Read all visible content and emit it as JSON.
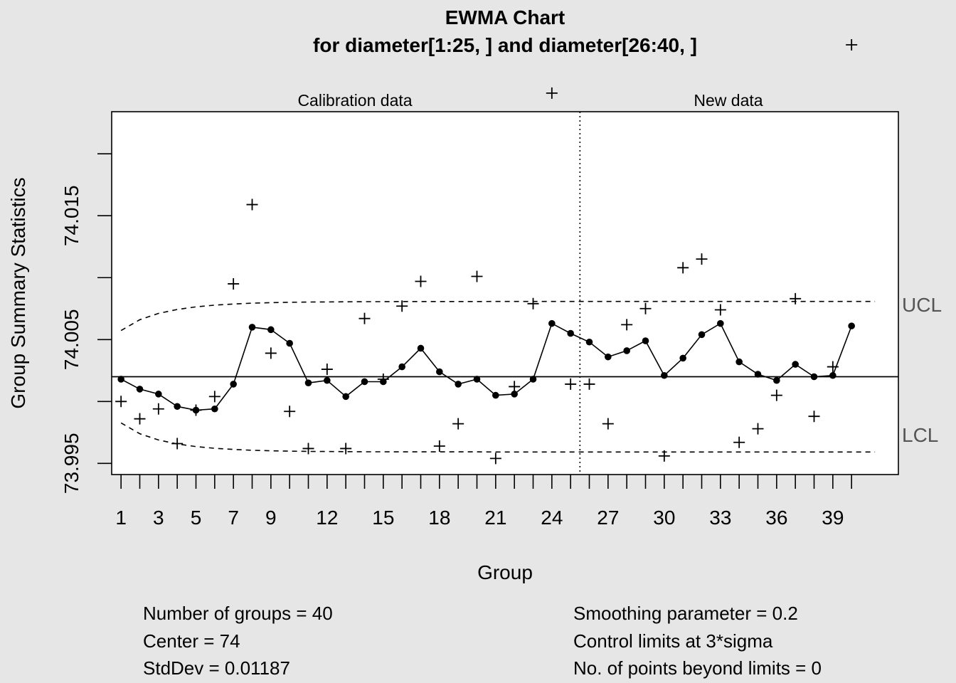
{
  "chart_data": {
    "type": "line",
    "title": "EWMA Chart",
    "subtitle": "for diameter[1:25, ] and diameter[26:40, ]",
    "xlabel": "Group",
    "ylabel": "Group Summary Statistics",
    "sections": [
      "Calibration data",
      "New data"
    ],
    "calibration_end": 25,
    "xlim": [
      0.5,
      42.5
    ],
    "ylim": [
      73.9941,
      74.0234
    ],
    "x_ticks": [
      1,
      3,
      5,
      7,
      9,
      12,
      15,
      18,
      21,
      24,
      27,
      30,
      33,
      36,
      39
    ],
    "x_tick_marks": [
      1,
      2,
      3,
      4,
      5,
      6,
      7,
      8,
      9,
      10,
      11,
      12,
      13,
      14,
      15,
      16,
      17,
      18,
      19,
      20,
      21,
      22,
      23,
      24,
      25,
      26,
      27,
      28,
      29,
      30,
      31,
      32,
      33,
      34,
      35,
      36,
      37,
      38,
      39,
      40
    ],
    "y_ticks": [
      73.995,
      74.0,
      74.005,
      74.01,
      74.015,
      74.02
    ],
    "y_tick_labels": [
      "73.995",
      "",
      "74.005",
      "",
      "74.015",
      ""
    ],
    "center": 74.002,
    "center_line_label": "",
    "ucl_label": "UCL",
    "lcl_label": "LCL",
    "x": [
      1,
      2,
      3,
      4,
      5,
      6,
      7,
      8,
      9,
      10,
      11,
      12,
      13,
      14,
      15,
      16,
      17,
      18,
      19,
      20,
      21,
      22,
      23,
      24,
      25,
      26,
      27,
      28,
      29,
      30,
      31,
      32,
      33,
      34,
      35,
      36,
      37,
      38,
      39,
      40
    ],
    "series": [
      {
        "name": "",
        "kind": "group statistics",
        "values": [
          74.0,
          73.9986,
          73.9994,
          73.9966,
          73.9993,
          74.0004,
          74.0095,
          74.0159,
          74.0039,
          73.9992,
          73.9962,
          74.0026,
          73.9962,
          74.0067,
          74.0018,
          74.0077,
          74.0097,
          73.9964,
          73.9982,
          74.0101,
          73.9954,
          74.0012,
          74.0079,
          74.0249,
          74.0014,
          74.0014,
          73.9982,
          74.0062,
          74.0075,
          73.9956,
          74.0108,
          74.0115,
          74.0074,
          73.9967,
          73.9978,
          74.0005,
          74.0083,
          73.9988,
          74.0028,
          74.0288
        ]
      },
      {
        "name": "",
        "kind": "EWMA",
        "values": [
          74.0018,
          74.001,
          74.0006,
          73.9996,
          73.9993,
          73.9994,
          74.0014,
          74.006,
          74.0058,
          74.0047,
          74.0015,
          74.0017,
          74.0004,
          74.0016,
          74.0016,
          74.0028,
          74.0043,
          74.0024,
          74.0014,
          74.0018,
          74.0005,
          74.0006,
          74.0018,
          74.0063,
          74.0055,
          74.0048,
          74.0036,
          74.0041,
          74.0049,
          74.0021,
          74.0035,
          74.0054,
          74.0063,
          74.0032,
          74.0022,
          74.0017,
          74.003,
          74.002,
          74.0021,
          74.0061
        ]
      }
    ],
    "ucl": [
      74.00573,
      74.0066,
      74.00711,
      74.00743,
      74.00764,
      74.00778,
      74.00787,
      74.00794,
      74.00798,
      74.00801,
      74.00803,
      74.00804,
      74.00805,
      74.00806,
      74.00806,
      74.00807,
      74.00807,
      74.00807,
      74.00807,
      74.00807,
      74.00808,
      74.00808,
      74.00808,
      74.00808,
      74.00808,
      74.00808,
      74.00808,
      74.00808,
      74.00808,
      74.00808,
      74.00808,
      74.00808,
      74.00808,
      74.00808,
      74.00808,
      74.00808,
      74.00808,
      74.00808,
      74.00808,
      74.00808
    ],
    "lcl": [
      73.99827,
      73.9974,
      73.99689,
      73.99657,
      73.99636,
      73.99622,
      73.99613,
      73.99606,
      73.99602,
      73.99599,
      73.99597,
      73.99596,
      73.99595,
      73.99594,
      73.99594,
      73.99593,
      73.99593,
      73.99593,
      73.99593,
      73.99593,
      73.99592,
      73.99592,
      73.99592,
      73.99592,
      73.99592,
      73.99592,
      73.99592,
      73.99592,
      73.99592,
      73.99592,
      73.99592,
      73.99592,
      73.99592,
      73.99592,
      73.99592,
      73.99592,
      73.99592,
      73.99592,
      73.99592,
      73.99592
    ],
    "stats_left": [
      "Number of groups = 40",
      "Center = 74",
      "StdDev = 0.01187"
    ],
    "stats_right": [
      "Smoothing parameter =  0.2",
      "Control limits at 3*sigma",
      "No. of points beyond limits = 0"
    ],
    "grid": false,
    "legend": "none"
  }
}
